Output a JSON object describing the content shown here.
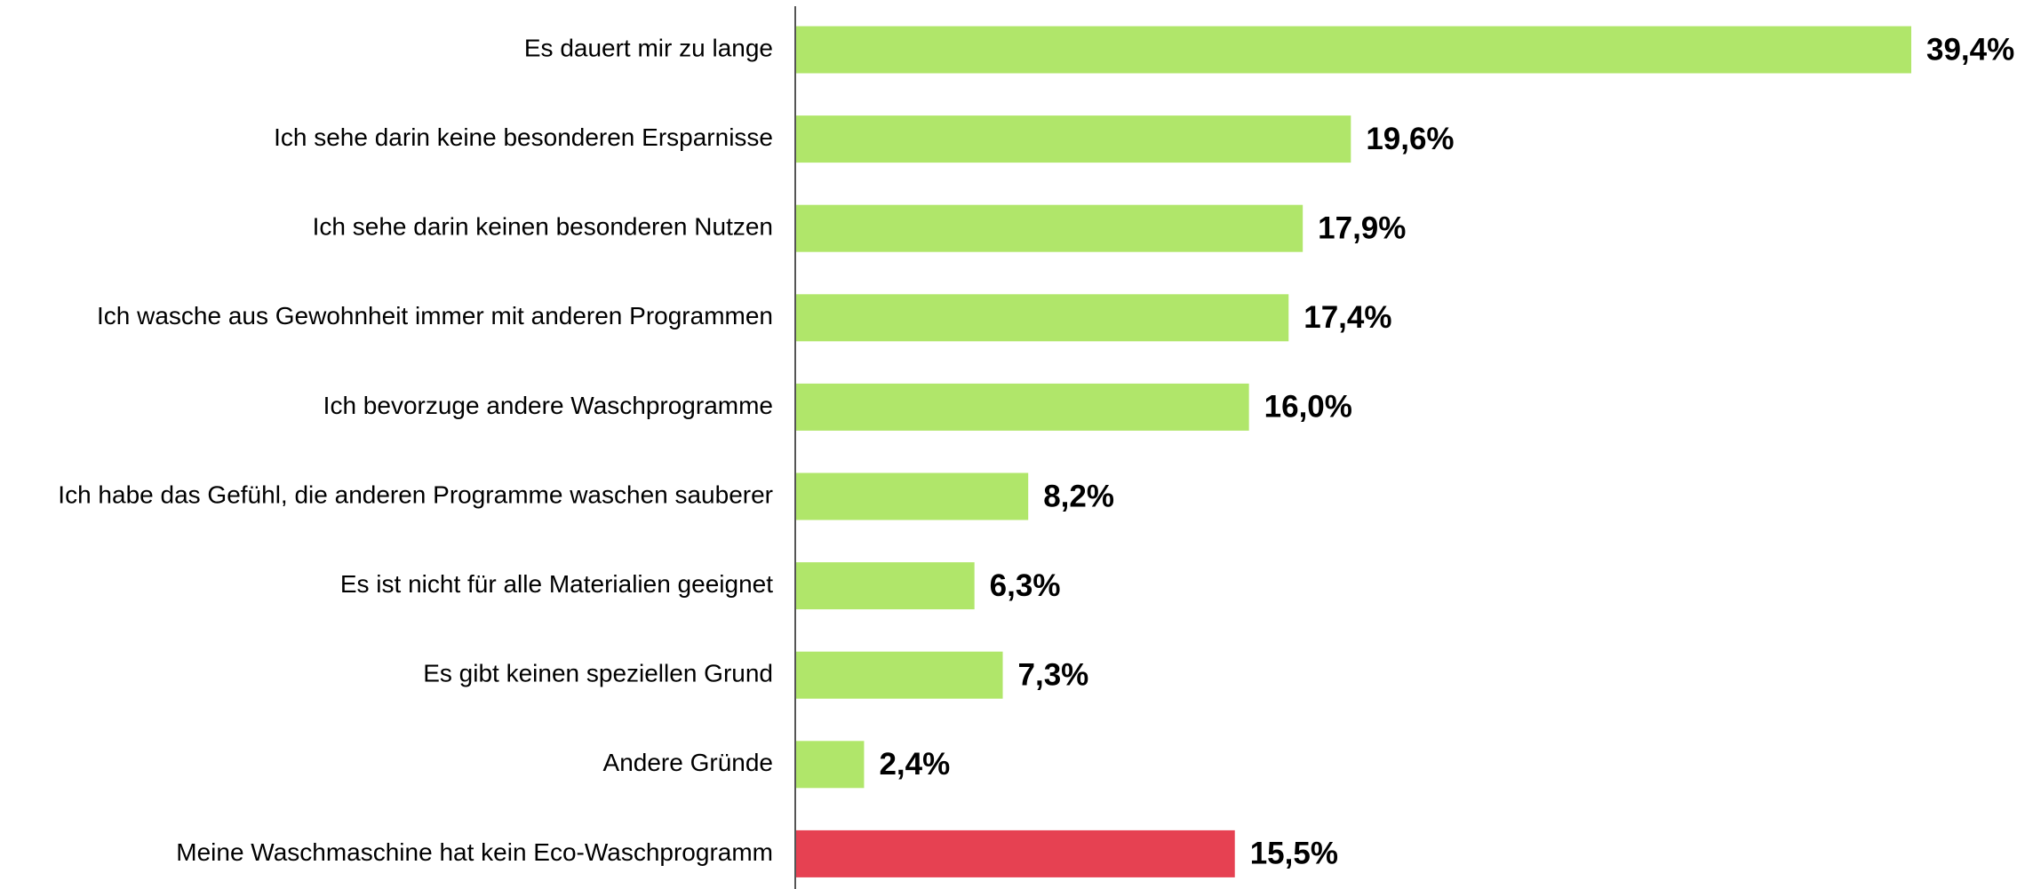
{
  "chart_data": {
    "type": "barh",
    "categories": [
      "Es dauert mir zu lange",
      "Ich sehe darin keine besonderen Ersparnisse",
      "Ich sehe darin keinen besonderen Nutzen",
      "Ich wasche aus Gewohnheit immer mit anderen Programmen",
      "Ich bevorzuge andere Waschprogramme",
      "Ich habe das Gefühl, die anderen Programme waschen sauberer",
      "Es ist nicht für alle Materialien geeignet",
      "Es gibt keinen speziellen Grund",
      "Andere Gründe",
      "Meine Waschmaschine hat kein Eco-Waschprogramm"
    ],
    "values": [
      39.4,
      19.6,
      17.9,
      17.4,
      16.0,
      8.2,
      6.3,
      7.3,
      2.4,
      15.5
    ],
    "value_labels": [
      "39,4%",
      "19,6%",
      "17,9%",
      "17,4%",
      "16,0%",
      "8,2%",
      "6,3%",
      "7,3%",
      "2,4%",
      "15,5%"
    ],
    "colors": [
      "#b0e66a",
      "#b0e66a",
      "#b0e66a",
      "#b0e66a",
      "#b0e66a",
      "#b0e66a",
      "#b0e66a",
      "#b0e66a",
      "#b0e66a",
      "#e64152"
    ]
  }
}
